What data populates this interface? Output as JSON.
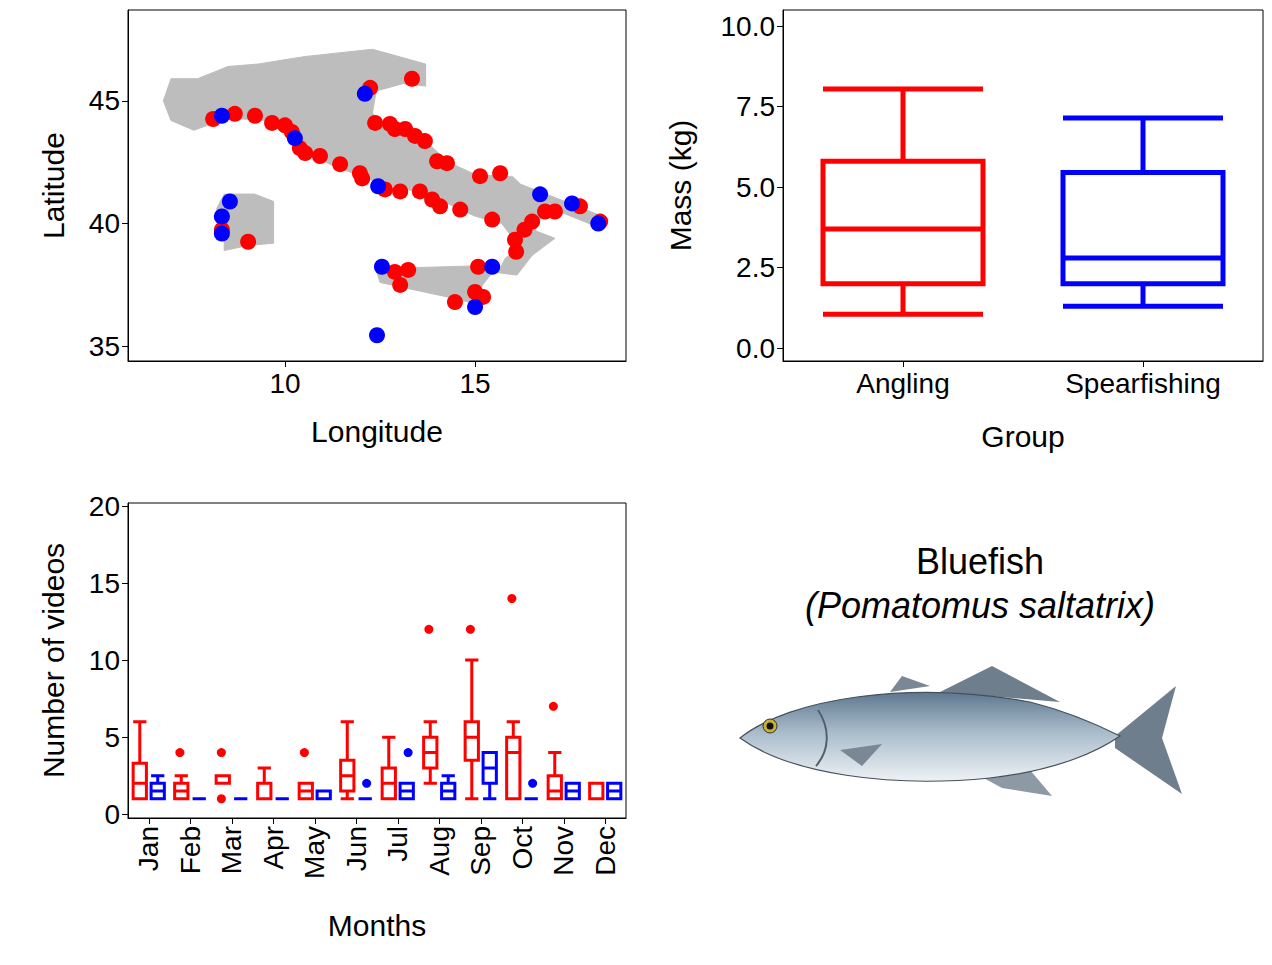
{
  "chart_data": [
    {
      "type": "scatter",
      "x_label": "Longitude",
      "y_label": "Latitude",
      "xlim": [
        5.87,
        18.97
      ],
      "ylim": [
        34.4,
        48.7
      ],
      "xticks": [
        10,
        15
      ],
      "yticks": [
        35,
        40,
        45
      ],
      "grid": false,
      "land": [
        [
          [
            7.0,
            45.9
          ],
          [
            7.7,
            45.9
          ],
          [
            8.5,
            46.4
          ],
          [
            9.3,
            46.5
          ],
          [
            10.5,
            46.8
          ],
          [
            12.3,
            47.1
          ],
          [
            13.7,
            46.5
          ],
          [
            13.7,
            45.6
          ],
          [
            13.1,
            45.7
          ],
          [
            12.4,
            45.4
          ],
          [
            12.3,
            44.5
          ],
          [
            12.6,
            44.0
          ],
          [
            13.6,
            43.5
          ],
          [
            14.3,
            42.5
          ],
          [
            15.0,
            42.0
          ],
          [
            16.0,
            41.9
          ],
          [
            16.2,
            41.6
          ],
          [
            17.2,
            41.0
          ],
          [
            18.5,
            40.2
          ],
          [
            18.4,
            39.8
          ],
          [
            18.0,
            40.0
          ],
          [
            17.2,
            40.5
          ],
          [
            16.6,
            40.1
          ],
          [
            16.6,
            39.7
          ],
          [
            17.1,
            39.4
          ],
          [
            16.5,
            38.7
          ],
          [
            16.1,
            37.9
          ],
          [
            15.6,
            38.0
          ],
          [
            15.8,
            38.6
          ],
          [
            16.2,
            39.0
          ],
          [
            15.7,
            40.0
          ],
          [
            15.0,
            40.3
          ],
          [
            14.3,
            40.8
          ],
          [
            13.7,
            41.2
          ],
          [
            12.4,
            41.7
          ],
          [
            11.2,
            42.4
          ],
          [
            10.5,
            43.0
          ],
          [
            10.2,
            43.9
          ],
          [
            9.5,
            44.2
          ],
          [
            8.5,
            44.3
          ],
          [
            7.6,
            43.8
          ],
          [
            7.0,
            44.2
          ],
          [
            6.8,
            45.0
          ]
        ],
        [
          [
            12.4,
            38.1
          ],
          [
            13.3,
            38.2
          ],
          [
            15.6,
            38.3
          ],
          [
            15.1,
            37.3
          ],
          [
            15.1,
            36.7
          ],
          [
            14.3,
            37.0
          ],
          [
            12.5,
            37.6
          ]
        ],
        [
          [
            8.4,
            41.2
          ],
          [
            9.2,
            41.2
          ],
          [
            9.7,
            40.9
          ],
          [
            9.7,
            39.2
          ],
          [
            9.0,
            39.1
          ],
          [
            8.4,
            38.9
          ],
          [
            8.4,
            39.8
          ],
          [
            8.2,
            40.6
          ]
        ]
      ],
      "series": [
        {
          "name": "Angling",
          "color": "#ff0000",
          "marker": "circle",
          "values": [
            [
              8.11,
              44.26
            ],
            [
              8.68,
              44.47
            ],
            [
              9.21,
              44.39
            ],
            [
              9.66,
              44.1
            ],
            [
              10.0,
              44.0
            ],
            [
              10.18,
              43.73
            ],
            [
              10.39,
              43.07
            ],
            [
              10.53,
              42.87
            ],
            [
              10.92,
              42.75
            ],
            [
              11.45,
              42.42
            ],
            [
              11.97,
              42.05
            ],
            [
              12.03,
              41.84
            ],
            [
              12.63,
              41.39
            ],
            [
              13.03,
              41.31
            ],
            [
              12.24,
              45.53
            ],
            [
              13.34,
              45.9
            ],
            [
              12.37,
              44.1
            ],
            [
              12.76,
              44.06
            ],
            [
              12.89,
              43.85
            ],
            [
              13.16,
              43.85
            ],
            [
              13.42,
              43.57
            ],
            [
              13.68,
              43.36
            ],
            [
              14.0,
              42.54
            ],
            [
              14.26,
              42.46
            ],
            [
              13.55,
              41.31
            ],
            [
              13.87,
              40.98
            ],
            [
              14.08,
              40.7
            ],
            [
              14.61,
              40.57
            ],
            [
              15.13,
              41.93
            ],
            [
              15.66,
              42.05
            ],
            [
              15.45,
              40.16
            ],
            [
              16.05,
              39.34
            ],
            [
              16.08,
              38.85
            ],
            [
              16.3,
              39.75
            ],
            [
              16.5,
              40.08
            ],
            [
              16.84,
              40.49
            ],
            [
              17.1,
              40.49
            ],
            [
              17.76,
              40.7
            ],
            [
              18.29,
              40.08
            ],
            [
              8.34,
              39.75
            ],
            [
              9.03,
              39.26
            ],
            [
              12.89,
              38.03
            ],
            [
              13.24,
              38.11
            ],
            [
              13.03,
              37.5
            ],
            [
              14.47,
              36.8
            ],
            [
              15.08,
              38.24
            ],
            [
              15.0,
              37.21
            ],
            [
              15.21,
              37.01
            ]
          ]
        },
        {
          "name": "Spearfishing",
          "color": "#0000ff",
          "marker": "circle",
          "values": [
            [
              8.34,
              44.39
            ],
            [
              8.55,
              40.9
            ],
            [
              8.34,
              40.29
            ],
            [
              8.34,
              39.59
            ],
            [
              10.26,
              43.48
            ],
            [
              12.1,
              45.29
            ],
            [
              12.45,
              41.52
            ],
            [
              12.55,
              38.24
            ],
            [
              12.42,
              35.45
            ],
            [
              15.0,
              36.6
            ],
            [
              15.45,
              38.24
            ],
            [
              16.71,
              41.19
            ],
            [
              17.55,
              40.82
            ],
            [
              18.24,
              40.0
            ]
          ]
        }
      ]
    },
    {
      "type": "boxplot",
      "x_label": "Group",
      "y_label": "Mass (kg)",
      "categories": [
        "Angling",
        "Spearfishing"
      ],
      "values": [
        [
          1.05,
          2.0,
          3.7,
          5.8,
          8.05
        ],
        [
          1.3,
          2.0,
          2.8,
          5.45,
          7.15
        ]
      ],
      "colors": [
        "#ff0000",
        "#0000ff"
      ],
      "ylim": [
        -0.4,
        10.5
      ],
      "yticks": [
        {
          "value": 0,
          "label": "0.0"
        },
        {
          "value": 2.5,
          "label": "2.5"
        },
        {
          "value": 5,
          "label": "5.0"
        },
        {
          "value": 7.5,
          "label": "7.5"
        },
        {
          "value": 10,
          "label": "10.0"
        }
      ],
      "grid": false
    },
    {
      "type": "boxplot",
      "x_label": "Months",
      "y_label": "Number of videos",
      "categories": [
        "Jan",
        "Feb",
        "Mar",
        "Apr",
        "May",
        "Jun",
        "Jul",
        "Aug",
        "Sep",
        "Oct",
        "Nov",
        "Dec"
      ],
      "ylim": [
        -0.25,
        20.2
      ],
      "yticks": [
        0,
        5,
        10,
        15,
        20
      ],
      "grid": false,
      "series": [
        {
          "name": "Angling",
          "color": "#ff0000",
          "values": [
            [
              1,
              1,
              2,
              3.3,
              6
            ],
            [
              1,
              1,
              1.5,
              2,
              2.5
            ],
            [
              2,
              2,
              2,
              2.5,
              2.5
            ],
            [
              1,
              1,
              1,
              2,
              3
            ],
            [
              1,
              1,
              1.5,
              2,
              2
            ],
            [
              1,
              1.5,
              2.5,
              3.5,
              6
            ],
            [
              1,
              1,
              2,
              3,
              5
            ],
            [
              2,
              3,
              4,
              5,
              6
            ],
            [
              1,
              3.5,
              5,
              6,
              10
            ],
            [
              1,
              1,
              4,
              5,
              6
            ],
            [
              1,
              1,
              1.5,
              2.5,
              4
            ],
            [
              1,
              1,
              1,
              2,
              2
            ]
          ],
          "outliers": [
            [],
            [
              4
            ],
            [
              4,
              1
            ],
            [],
            [
              4
            ],
            [],
            [],
            [
              12
            ],
            [
              12
            ],
            [
              14
            ],
            [
              7
            ],
            []
          ]
        },
        {
          "name": "Spearfishing",
          "color": "#0000ff",
          "values": [
            [
              1,
              1,
              1.5,
              2,
              2.5
            ],
            [
              1,
              1,
              1,
              1,
              1
            ],
            [
              1,
              1,
              1,
              1,
              1
            ],
            [
              1,
              1,
              1,
              1,
              1
            ],
            [
              1,
              1,
              1,
              1.5,
              1.5
            ],
            [
              1,
              1,
              1,
              1,
              1
            ],
            [
              1,
              1,
              1.5,
              2,
              2
            ],
            [
              1,
              1,
              1.5,
              2,
              2.5
            ],
            [
              1,
              2,
              3,
              4,
              4
            ],
            [
              1,
              1,
              1,
              1,
              1
            ],
            [
              1,
              1,
              1.5,
              2,
              2
            ],
            [
              1,
              1,
              1.5,
              2,
              2
            ]
          ],
          "outliers": [
            [],
            [],
            [],
            [],
            [],
            [
              2
            ],
            [
              4
            ],
            [],
            [],
            [
              2
            ],
            [],
            []
          ]
        }
      ]
    }
  ],
  "species_panel": {
    "title": "Bluefish",
    "subtitle": "(Pomatomus saltatrix)"
  }
}
